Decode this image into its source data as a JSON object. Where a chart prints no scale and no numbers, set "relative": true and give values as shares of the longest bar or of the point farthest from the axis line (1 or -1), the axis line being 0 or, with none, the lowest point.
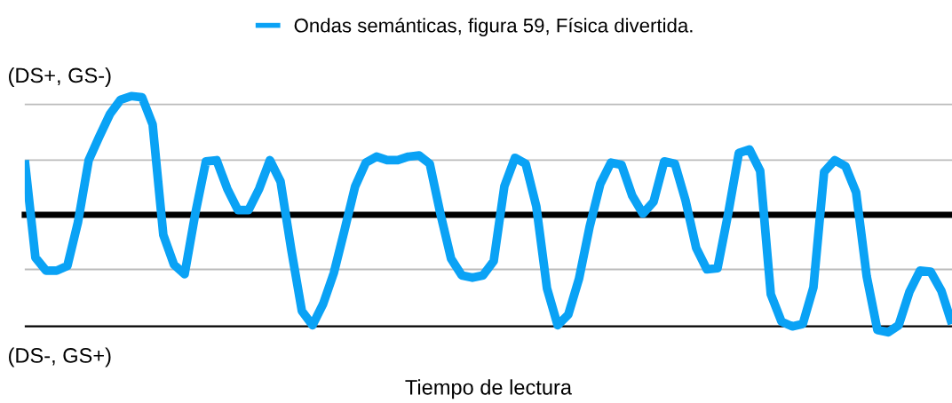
{
  "chart_data": {
    "type": "line",
    "relative": true,
    "xlabel": "Tiempo de lectura",
    "legend": "top",
    "marker": "none",
    "line_style": "solid",
    "annotations": [
      "(DS+, GS-)",
      "(DS-, GS+)"
    ],
    "categories": [
      null,
      null,
      null,
      null,
      null,
      null,
      null,
      null,
      null,
      null,
      null,
      null,
      null,
      null,
      null,
      null,
      null,
      null,
      null,
      null,
      null,
      null,
      null,
      null,
      null,
      null,
      null,
      null,
      null,
      null,
      null,
      null,
      null,
      null,
      null,
      null,
      null,
      null,
      null,
      null,
      null,
      null,
      null,
      null,
      null,
      null,
      null,
      null,
      null,
      null,
      null,
      null,
      null,
      null,
      null,
      null,
      null,
      null,
      null,
      null,
      null,
      null,
      null,
      null,
      null,
      null,
      null,
      null,
      null,
      null,
      null,
      null,
      null,
      null,
      null,
      null,
      null,
      null,
      null,
      null,
      null,
      null,
      null,
      null,
      null,
      null,
      null,
      null
    ],
    "series": [
      {
        "name": "Ondas semánticas, figura 59, Física divertida.",
        "color": "#0aa2f5",
        "values": [
          0.46,
          -0.36,
          -0.47,
          -0.47,
          -0.43,
          -0.06,
          0.46,
          0.66,
          0.85,
          0.97,
          1,
          0.99,
          0.76,
          -0.17,
          -0.42,
          -0.5,
          0.01,
          0.45,
          0.46,
          0.22,
          0.04,
          0.04,
          0.22,
          0.46,
          0.28,
          -0.29,
          -0.81,
          -0.93,
          -0.75,
          -0.49,
          -0.13,
          0.24,
          0.44,
          0.49,
          0.46,
          0.46,
          0.49,
          0.5,
          0.43,
          0.01,
          -0.37,
          -0.51,
          -0.53,
          -0.51,
          -0.39,
          0.24,
          0.48,
          0.43,
          0.07,
          -0.62,
          -0.93,
          -0.84,
          -0.54,
          -0.1,
          0.26,
          0.44,
          0.42,
          0.16,
          0.01,
          0.11,
          0.45,
          0.43,
          0.12,
          -0.28,
          -0.46,
          -0.45,
          0.01,
          0.52,
          0.55,
          0.37,
          -0.67,
          -0.9,
          -0.94,
          -0.92,
          -0.61,
          0.36,
          0.46,
          0.41,
          0.19,
          -0.52,
          -0.97,
          -0.99,
          -0.93,
          -0.65,
          -0.47,
          -0.48,
          -0.64,
          -0.92
        ]
      }
    ],
    "ref_lines": [
      {
        "axis": "y",
        "value": 0.93,
        "color": "#bbbbbb"
      },
      {
        "axis": "y",
        "value": 0.46,
        "color": "#bbbbbb"
      },
      {
        "axis": "y",
        "value": -0.46,
        "color": "#bbbbbb"
      },
      {
        "axis": "y",
        "value": -0.94,
        "color": "#000000"
      }
    ]
  }
}
